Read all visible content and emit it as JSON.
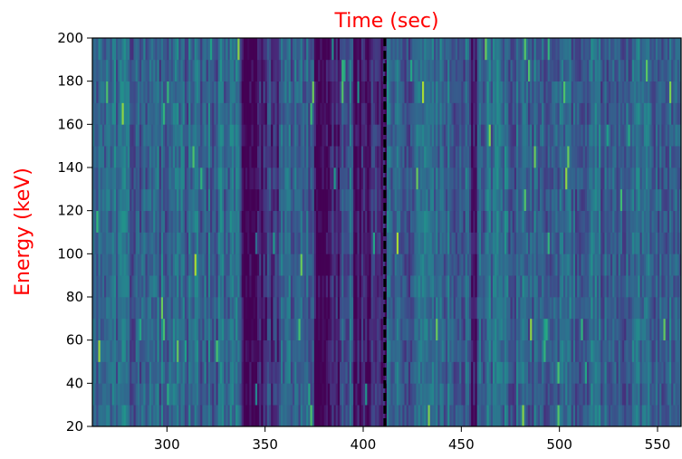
{
  "chart_data": {
    "type": "heatmap",
    "title": "Time (sec)",
    "xlabel": "",
    "ylabel": "Energy (keV)",
    "xlim": [
      262,
      562
    ],
    "ylim": [
      20,
      200
    ],
    "x_ticks": [
      300,
      350,
      400,
      450,
      500,
      550
    ],
    "y_ticks": [
      20,
      40,
      60,
      80,
      100,
      120,
      140,
      160,
      180,
      200
    ],
    "energy_bin_edges": [
      20,
      30,
      40,
      50,
      60,
      70,
      80,
      90,
      100,
      110,
      120,
      130,
      140,
      150,
      160,
      170,
      180,
      190,
      200
    ],
    "time_bin_width": 1,
    "colormap": "viridis",
    "vline": {
      "x": 411,
      "style": "dashed",
      "color": "#000000"
    },
    "title_color": "#ff0000",
    "ylabel_color": "#ff0000",
    "intensity_profile": [
      {
        "x0": 262,
        "x1": 338,
        "level": 0.32
      },
      {
        "x0": 338,
        "x1": 350,
        "level": 0.06
      },
      {
        "x0": 350,
        "x1": 358,
        "level": 0.14
      },
      {
        "x0": 358,
        "x1": 375,
        "level": 0.3
      },
      {
        "x0": 375,
        "x1": 388,
        "level": 0.06
      },
      {
        "x0": 388,
        "x1": 395,
        "level": 0.28
      },
      {
        "x0": 395,
        "x1": 403,
        "level": 0.05
      },
      {
        "x0": 403,
        "x1": 412,
        "level": 0.12
      },
      {
        "x0": 412,
        "x1": 455,
        "level": 0.32
      },
      {
        "x0": 455,
        "x1": 458,
        "level": 0.08
      },
      {
        "x0": 458,
        "x1": 562,
        "level": 0.32
      }
    ]
  }
}
